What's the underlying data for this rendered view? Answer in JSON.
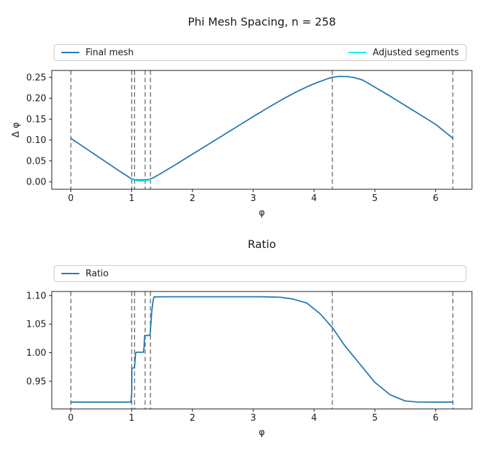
{
  "chart_data": [
    {
      "type": "line",
      "title": "Phi Mesh Spacing, n = 258",
      "xlabel": "φ",
      "ylabel": "Δ φ",
      "xlim": [
        -0.314,
        6.597
      ],
      "ylim": [
        -0.018,
        0.2665
      ],
      "grid": false,
      "legend_position": "above axes, full width, two columns",
      "xticks": [
        0,
        1,
        2,
        3,
        4,
        5,
        6
      ],
      "xtick_labels": [
        "0",
        "1",
        "2",
        "3",
        "4",
        "5",
        "6"
      ],
      "yticks": [
        0.0,
        0.05,
        0.1,
        0.15,
        0.2,
        0.25
      ],
      "ytick_labels": [
        "0.00",
        "0.05",
        "0.10",
        "0.15",
        "0.20",
        "0.25"
      ],
      "vlines": {
        "x": [
          0,
          1.0,
          1.047,
          1.222,
          1.309,
          4.3,
          6.283
        ],
        "style": "dashed",
        "color": "#7f7f7f"
      },
      "series": [
        {
          "name": "Final mesh",
          "color": "#1f77b4",
          "x": [
            0,
            0.25,
            0.5,
            0.75,
            0.9,
            1.0,
            1.05,
            1.1,
            1.15,
            1.2,
            1.28,
            1.35,
            1.5,
            1.75,
            2.0,
            2.25,
            2.5,
            2.75,
            3.0,
            3.25,
            3.5,
            3.7,
            3.9,
            4.05,
            4.2,
            4.3,
            4.42,
            4.55,
            4.65,
            4.8,
            5.0,
            5.25,
            5.5,
            5.75,
            6.0,
            6.283
          ],
          "y": [
            0.104,
            0.0795,
            0.055,
            0.0305,
            0.016,
            0.0068,
            0.005,
            0.0045,
            0.0043,
            0.0045,
            0.0055,
            0.009,
            0.0215,
            0.0435,
            0.066,
            0.0885,
            0.111,
            0.1335,
            0.156,
            0.178,
            0.199,
            0.2145,
            0.2285,
            0.2375,
            0.2455,
            0.2502,
            0.2525,
            0.2518,
            0.2498,
            0.2435,
            0.2265,
            0.205,
            0.1825,
            0.16,
            0.1375,
            0.104
          ]
        },
        {
          "name": "Adjusted segments",
          "color": "#00eeee",
          "x": [
            0.995,
            1.05,
            1.1,
            1.15,
            1.2,
            1.25,
            1.305
          ],
          "y": [
            0.0055,
            0.0032,
            0.0022,
            0.0019,
            0.0022,
            0.0032,
            0.0055
          ]
        }
      ]
    },
    {
      "type": "line",
      "title": "Ratio",
      "xlabel": "φ",
      "ylabel": "",
      "xlim": [
        -0.314,
        6.597
      ],
      "ylim": [
        0.9016,
        1.107
      ],
      "grid": false,
      "legend_position": "above axes, full width, single entry",
      "xticks": [
        0,
        1,
        2,
        3,
        4,
        5,
        6
      ],
      "xtick_labels": [
        "0",
        "1",
        "2",
        "3",
        "4",
        "5",
        "6"
      ],
      "yticks": [
        0.95,
        1.0,
        1.05,
        1.1
      ],
      "ytick_labels": [
        "0.95",
        "1.00",
        "1.05",
        "1.10"
      ],
      "vlines": {
        "x": [
          0,
          1.0,
          1.047,
          1.222,
          1.309,
          4.3,
          6.283
        ],
        "style": "dashed",
        "color": "#7f7f7f"
      },
      "series": [
        {
          "name": "Ratio",
          "color": "#1f77b4",
          "x": [
            0,
            0.5,
            0.99,
            1.0,
            1.005,
            1.045,
            1.05,
            1.065,
            1.075,
            1.195,
            1.205,
            1.215,
            1.3,
            1.31,
            1.33,
            1.355,
            1.37,
            1.6,
            2.0,
            2.5,
            3.0,
            3.2,
            3.45,
            3.65,
            3.88,
            4.1,
            4.3,
            4.5,
            4.73,
            5.0,
            5.25,
            5.5,
            5.7,
            6.0,
            6.283
          ],
          "y": [
            0.9135,
            0.9135,
            0.9135,
            0.93,
            0.9727,
            0.9737,
            0.978,
            0.998,
            1.0008,
            1.0008,
            1.012,
            1.0299,
            1.0305,
            1.04,
            1.072,
            1.093,
            1.0976,
            1.0978,
            1.0978,
            1.0978,
            1.0978,
            1.0977,
            1.0968,
            1.094,
            1.0868,
            1.068,
            1.044,
            1.013,
            0.983,
            0.948,
            0.9265,
            0.9155,
            0.9137,
            0.9135,
            0.9135
          ]
        }
      ]
    }
  ]
}
